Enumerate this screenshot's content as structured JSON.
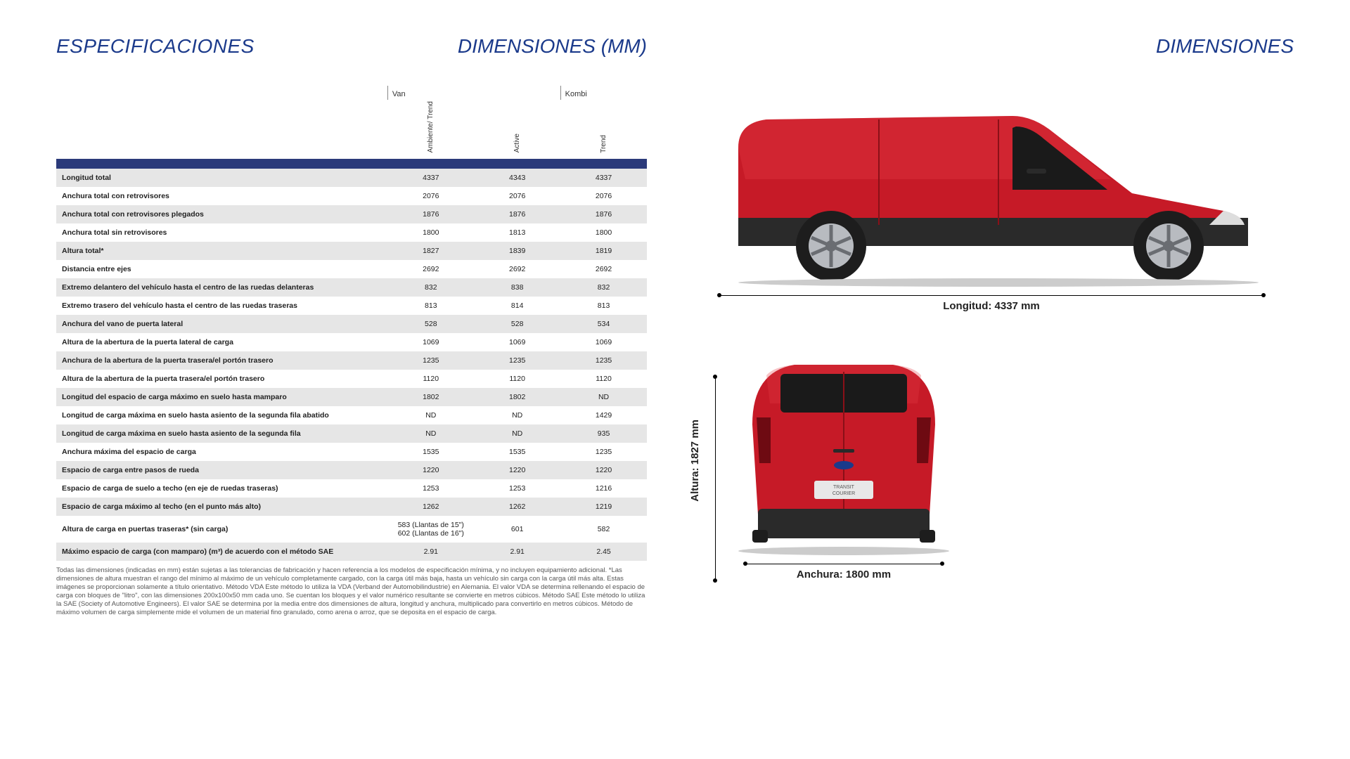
{
  "headings": {
    "spec": "ESPECIFICACIONES",
    "dims_center": "DIMENSIONES (MM)",
    "dims_right": "DIMENSIONES"
  },
  "table": {
    "group_headers": [
      "Van",
      "Kombi"
    ],
    "sub_headers": [
      "Ambiente/\nTrend",
      "Active",
      "Trend"
    ],
    "rows": [
      {
        "label": "Longitud total",
        "v": [
          "4337",
          "4343",
          "4337"
        ]
      },
      {
        "label": "Anchura total con retrovisores",
        "v": [
          "2076",
          "2076",
          "2076"
        ]
      },
      {
        "label": "Anchura total con retrovisores plegados",
        "v": [
          "1876",
          "1876",
          "1876"
        ]
      },
      {
        "label": "Anchura total sin retrovisores",
        "v": [
          "1800",
          "1813",
          "1800"
        ]
      },
      {
        "label": "Altura total*",
        "v": [
          "1827",
          "1839",
          "1819"
        ]
      },
      {
        "label": "Distancia entre ejes",
        "v": [
          "2692",
          "2692",
          "2692"
        ]
      },
      {
        "label": "Extremo delantero del vehículo hasta el centro de las ruedas delanteras",
        "v": [
          "832",
          "838",
          "832"
        ]
      },
      {
        "label": "Extremo trasero del vehículo hasta el centro de las ruedas traseras",
        "v": [
          "813",
          "814",
          "813"
        ]
      },
      {
        "label": "Anchura del vano de puerta lateral",
        "v": [
          "528",
          "528",
          "534"
        ]
      },
      {
        "label": "Altura de la abertura de la puerta lateral de carga",
        "v": [
          "1069",
          "1069",
          "1069"
        ]
      },
      {
        "label": "Anchura de la abertura de la puerta trasera/el portón trasero",
        "v": [
          "1235",
          "1235",
          "1235"
        ]
      },
      {
        "label": "Altura de la abertura de la puerta trasera/el portón trasero",
        "v": [
          "1120",
          "1120",
          "1120"
        ]
      },
      {
        "label": "Longitud del espacio de carga máximo en suelo hasta mamparo",
        "v": [
          "1802",
          "1802",
          "ND"
        ]
      },
      {
        "label": "Longitud de carga máxima en suelo hasta asiento de la segunda fila abatido",
        "v": [
          "ND",
          "ND",
          "1429"
        ]
      },
      {
        "label": "Longitud de carga máxima en suelo hasta asiento de la segunda fila",
        "v": [
          "ND",
          "ND",
          "935"
        ]
      },
      {
        "label": "Anchura máxima del espacio de carga",
        "v": [
          "1535",
          "1535",
          "1235"
        ]
      },
      {
        "label": "Espacio de carga entre pasos de rueda",
        "v": [
          "1220",
          "1220",
          "1220"
        ]
      },
      {
        "label": "Espacio de carga de suelo a techo (en eje de ruedas traseras)",
        "v": [
          "1253",
          "1253",
          "1216"
        ]
      },
      {
        "label": "Espacio de carga máximo al techo (en el punto más alto)",
        "v": [
          "1262",
          "1262",
          "1219"
        ]
      },
      {
        "label": "Altura de carga en puertas traseras* (sin carga)",
        "v": [
          "583 (Llantas de 15\")\n602 (Llantas de 16\")",
          "601",
          "582"
        ]
      },
      {
        "label": "Máximo espacio de carga (con mamparo) (m³) de acuerdo con el método SAE",
        "v": [
          "2.91",
          "2.91",
          "2.45"
        ]
      }
    ]
  },
  "footnote": "Todas las dimensiones (indicadas en mm) están sujetas a las tolerancias de fabricación y hacen referencia a los modelos de especificación mínima, y no incluyen equipamiento adicional. *Las dimensiones de altura muestran el rango del mínimo al máximo de un vehículo completamente cargado, con la carga útil más baja, hasta un vehículo sin carga con la carga útil más alta. Estas imágenes se proporcionan solamente a título orientativo. Método VDA Este método lo utiliza la VDA (Verband der Automobilindustrie) en Alemania. El valor VDA se determina rellenando el espacio de carga con bloques de \"litro\", con las dimensiones 200x100x50 mm cada uno. Se cuentan los bloques y el valor numérico resultante se convierte en metros cúbicos. Método SAE Este método lo utiliza la SAE (Society of Automotive Engineers). El valor SAE se determina por la media entre dos dimensiones de altura, longitud y anchura, multiplicado para convertirlo en metros cúbicos. Método de máximo volumen de carga simplemente mide el volumen de un material fino granulado, como arena o arroz, que se deposita en el espacio de carga.",
  "dims": {
    "length_label": "Longitud: 4337 mm",
    "height_label": "Altura: 1827 mm",
    "width_label": "Anchura: 1800 mm"
  },
  "vehicle": {
    "body_color": "#c61a27",
    "body_highlight": "#e43b45",
    "trim_color": "#2a2a2a",
    "wheel_color": "#b8bbc0",
    "tire_color": "#1d1d1d",
    "window_color": "#1a1a1a",
    "badge_text": "TRANSIT\nCOURIER"
  }
}
